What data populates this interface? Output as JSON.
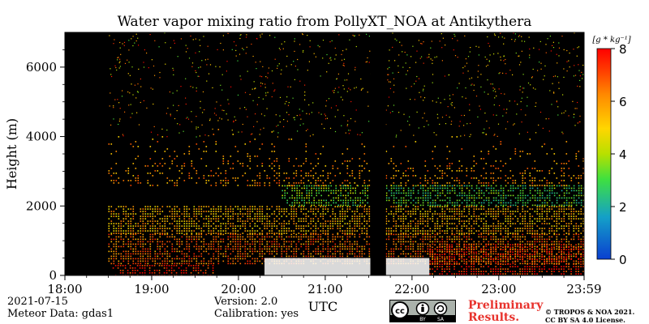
{
  "page": {
    "date": "2021-07-15",
    "meteor_data": "Meteor Data: gdas1",
    "version": "Version: 2.0",
    "calibration": "Calibration: yes",
    "preliminary": "Preliminary Results.",
    "copyright_line1": "© TROPOS & NOA 2021.",
    "copyright_line2": "CC BY SA 4.0 License.",
    "license_badge": {
      "cc": "cc",
      "by": "BY",
      "sa": "SA",
      "icons": [
        "creative-commons-icon",
        "attribution-person-icon",
        "share-alike-icon"
      ]
    }
  },
  "chart_data": {
    "type": "heatmap",
    "title": "Water vapor mixing ratio from PollyXT_NOA at Antikythera",
    "xlabel": "UTC",
    "ylabel": "Height (m)",
    "x_tick_labels": [
      "18:00",
      "19:00",
      "20:00",
      "21:00",
      "22:00",
      "23:00",
      "23:59"
    ],
    "x_ticks_hours": [
      18,
      19,
      20,
      21,
      22,
      23,
      23.983
    ],
    "xlim_hours": [
      18,
      23.983
    ],
    "ylim": [
      0,
      7000
    ],
    "y_ticks": [
      0,
      2000,
      4000,
      6000
    ],
    "y_tick_labels": [
      "0",
      "2000",
      "4000",
      "6000"
    ],
    "colorbar": {
      "label": "[g * kg⁻¹]",
      "range": [
        0,
        8
      ],
      "ticks": [
        0,
        2,
        4,
        6,
        8
      ],
      "tick_labels": [
        "0",
        "2",
        "4",
        "6",
        "8"
      ],
      "colormap": "jet-like",
      "colors": [
        "#1f4fd6",
        "#18b0b0",
        "#4fe04f",
        "#c8e600",
        "#ffd000",
        "#ff8c00",
        "#ff3000",
        "#ff0000"
      ]
    },
    "background_color": "#000000",
    "no_data_intervals_hours": [
      [
        18.0,
        18.5
      ],
      [
        21.52,
        21.7
      ]
    ],
    "approximate_field": [
      {
        "height_range": [
          0,
          300
        ],
        "time_range": [
          18.55,
          19.7
        ],
        "mixing_ratio": 7.5
      },
      {
        "height_range": [
          0,
          900
        ],
        "time_range": [
          22.2,
          23.983
        ],
        "mixing_ratio": 7.5
      },
      {
        "height_range": [
          300,
          1200
        ],
        "time_range": [
          18.5,
          23.983
        ],
        "mixing_ratio": 6.5
      },
      {
        "height_range": [
          1200,
          2000
        ],
        "time_range": [
          18.5,
          23.983
        ],
        "mixing_ratio": 5.5
      },
      {
        "height_range": [
          2000,
          2600
        ],
        "time_range": [
          20.5,
          21.5
        ],
        "mixing_ratio": 3.5
      },
      {
        "height_range": [
          2000,
          2600
        ],
        "time_range": [
          21.7,
          23.983
        ],
        "mixing_ratio": 3.0
      },
      {
        "height_range": [
          2600,
          4500
        ],
        "time_range": [
          18.5,
          23.983
        ],
        "mixing_ratio": 6.0
      }
    ]
  }
}
